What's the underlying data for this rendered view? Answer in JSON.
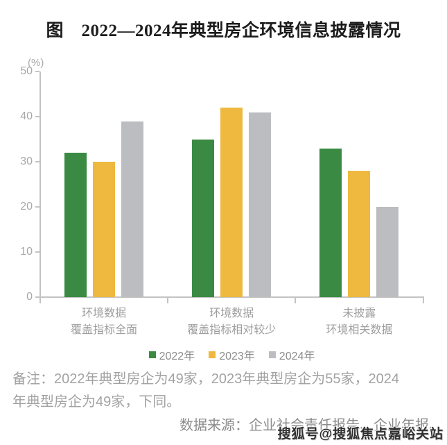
{
  "title": "图　2022—2024年典型房企环境信息披露情况",
  "chart_data": {
    "type": "bar",
    "title": "图 2022—2024年典型房企环境信息披露情况",
    "ylabel": "(%)",
    "ylim": [
      0,
      50
    ],
    "ytick_step": 10,
    "grid": false,
    "legend_position": "bottom",
    "categories": [
      [
        "环境数据",
        "覆盖指标全面"
      ],
      [
        "环境数据",
        "覆盖指标相对较少"
      ],
      [
        "未披露",
        "环境相关数据"
      ]
    ],
    "series": [
      {
        "name": "2022年",
        "color": "#3a8a43",
        "values": [
          32,
          35,
          33
        ]
      },
      {
        "name": "2023年",
        "color": "#eeb93e",
        "values": [
          30,
          42,
          28
        ]
      },
      {
        "name": "2024年",
        "color": "#bcbdc0",
        "values": [
          39,
          41,
          20
        ]
      }
    ]
  },
  "note": {
    "lines": [
      "备注：2022年典型房企为49家，2023年典型房企为55家，2024",
      "年典型房企为49家，下同。"
    ]
  },
  "source": "数据来源：企业社会责任报告、企业年报。",
  "watermark": "搜狐号@搜狐焦点嘉峪关站"
}
